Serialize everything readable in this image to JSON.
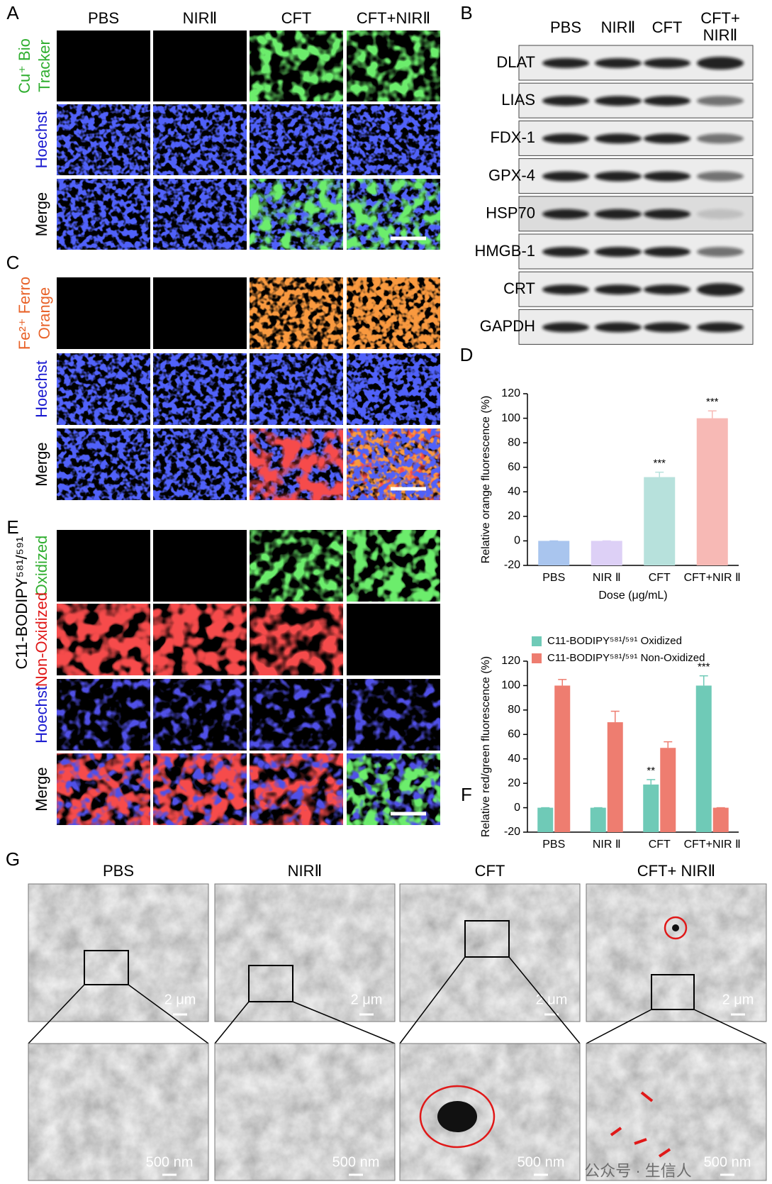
{
  "panel_labels": {
    "a": "A",
    "b": "B",
    "c": "C",
    "d": "D",
    "e": "E",
    "f": "F",
    "g": "G"
  },
  "fluorescence": {
    "columns": [
      "PBS",
      "NIRⅡ",
      "CFT",
      "CFT+NIRⅡ"
    ],
    "panel_a_rows": [
      {
        "lines": [
          "Cu⁺ Bio",
          "Tracker"
        ],
        "color": "#2fae2f"
      },
      {
        "lines": [
          "Hoechst"
        ],
        "color": "#1a1ad0"
      },
      {
        "lines": [
          "Merge"
        ],
        "color": "#000000"
      }
    ],
    "panel_c_rows": [
      {
        "lines": [
          "Fe²⁺ Ferro",
          "Orange"
        ],
        "color": "#e8632a"
      },
      {
        "lines": [
          "Hoechst"
        ],
        "color": "#1a1ad0"
      },
      {
        "lines": [
          "Merge"
        ],
        "color": "#000000"
      }
    ],
    "panel_e_probe": "C11-BODIPY⁵⁸¹/⁵⁹¹",
    "panel_e_rows": [
      {
        "lines": [
          "Oxidized"
        ],
        "color": "#2fae2f"
      },
      {
        "lines": [
          "Non-Oxidized"
        ],
        "color": "#e01818"
      },
      {
        "lines": [
          "Hoechst"
        ],
        "color": "#1a1ad0"
      },
      {
        "lines": [
          "Merge"
        ],
        "color": "#000000"
      }
    ]
  },
  "western_blot": {
    "columns": [
      [
        "PBS"
      ],
      [
        "NIRⅡ"
      ],
      [
        "CFT"
      ],
      [
        "CFT+",
        "NIRⅡ"
      ]
    ],
    "proteins": [
      "DLAT",
      "LIAS",
      "FDX-1",
      "GPX-4",
      "HSP70",
      "HMGB-1",
      "CRT",
      "GAPDH"
    ]
  },
  "chart_data": [
    {
      "type": "bar",
      "ylabel": "Relative orange fluorescence (%)",
      "xlabel": "Dose (μg/mL)",
      "categories": [
        "PBS",
        "NIR Ⅱ",
        "CFT",
        "CFT+NIR Ⅱ"
      ],
      "values": [
        0,
        0,
        52,
        100
      ],
      "errors": [
        0,
        0,
        4,
        6
      ],
      "colors": [
        "#a9c5ee",
        "#ddd0f6",
        "#b7e1dc",
        "#f7b9b5"
      ],
      "annotations": [
        null,
        null,
        "***",
        "***"
      ],
      "ylim": [
        -20,
        120
      ],
      "yticks": [
        -20,
        0,
        20,
        40,
        60,
        80,
        100,
        120
      ]
    },
    {
      "type": "grouped_bar",
      "ylabel": "Relative red/green fluorescence (%)",
      "categories": [
        "PBS",
        "NIR Ⅱ",
        "CFT",
        "CFT+NIR Ⅱ"
      ],
      "series": [
        {
          "name": "C11-BODIPY⁵⁸¹/⁵⁹¹ Oxidized",
          "color": "#6fcab7",
          "values": [
            0,
            0,
            19,
            100
          ],
          "errors": [
            0,
            0,
            4,
            8
          ],
          "annotations": [
            null,
            null,
            "**",
            "***"
          ]
        },
        {
          "name": "C11-BODIPY⁵⁸¹/⁵⁹¹ Non-Oxidized",
          "color": "#ee7d70",
          "values": [
            100,
            70,
            49,
            0
          ],
          "errors": [
            5,
            9,
            5,
            0
          ],
          "annotations": [
            null,
            null,
            null,
            null
          ]
        }
      ],
      "legend": "upper left",
      "ylim": [
        -20,
        120
      ],
      "yticks": [
        -20,
        0,
        20,
        40,
        60,
        80,
        100,
        120
      ]
    }
  ],
  "tem": {
    "columns": [
      "PBS",
      "NIRⅡ",
      "CFT",
      "CFT+ NIRⅡ"
    ],
    "scale_top": [
      "2 μm",
      "2 μm",
      "2 μm",
      "2 μm"
    ],
    "scale_bottom": [
      "500 nm",
      "500 nm",
      "500 nm",
      "500 nm"
    ]
  },
  "watermark": "公众号 · 生信人"
}
